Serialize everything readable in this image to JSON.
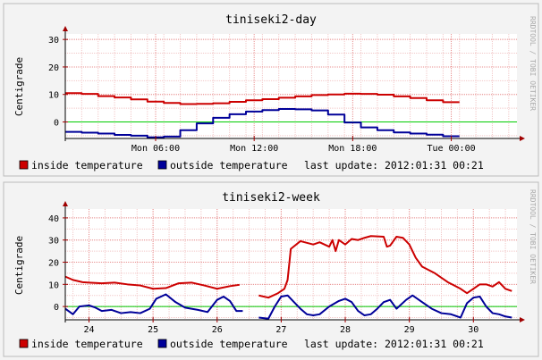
{
  "colors": {
    "inside": "#cc0000",
    "outside": "#000099",
    "zero_line": "#00cc00",
    "major_grid": "#e89090",
    "minor_grid": "#f2c8c8",
    "frame": "#999999"
  },
  "chart_data": [
    {
      "type": "line",
      "title": "tiniseki2-day",
      "ylabel": "Centigrade",
      "ylim": [
        -6,
        32
      ],
      "xlim": [
        0,
        27.5
      ],
      "yticks": [
        0,
        10,
        20,
        30
      ],
      "xticks": [
        {
          "label": "Mon 06:00",
          "value": 5.5
        },
        {
          "label": "Mon 12:00",
          "value": 11.5
        },
        {
          "label": "Mon 18:00",
          "value": 17.5
        },
        {
          "label": "Tue 00:00",
          "value": 23.5
        }
      ],
      "grid": true,
      "legend_placement": "bottom",
      "watermark": "RRDTOOL / TOBI OETIKER",
      "series": [
        {
          "name": "inside temperature",
          "x": [
            0,
            1,
            2,
            3,
            4,
            5,
            6,
            7,
            8,
            9,
            10,
            11,
            12,
            13,
            14,
            15,
            16,
            17,
            18,
            19,
            20,
            21,
            22,
            23
          ],
          "values": [
            10.5,
            10.2,
            9.4,
            8.9,
            8.2,
            7.4,
            6.9,
            6.5,
            6.6,
            6.8,
            7.3,
            7.9,
            8.3,
            8.8,
            9.3,
            9.8,
            10.0,
            10.3,
            10.2,
            9.9,
            9.3,
            8.7,
            7.9,
            7.2
          ]
        },
        {
          "name": "outside temperature",
          "x": [
            0,
            1,
            2,
            3,
            4,
            5,
            6,
            7,
            8,
            9,
            10,
            11,
            12,
            13,
            14,
            15,
            16,
            17,
            18,
            19,
            20,
            21,
            22,
            23
          ],
          "values": [
            -3.6,
            -3.9,
            -4.2,
            -4.7,
            -5.0,
            -5.6,
            -5.3,
            -3.0,
            -0.5,
            1.5,
            2.8,
            3.8,
            4.3,
            4.7,
            4.6,
            4.2,
            2.7,
            -0.2,
            -2.0,
            -3.0,
            -3.8,
            -4.2,
            -4.6,
            -5.2
          ]
        }
      ],
      "legend": {
        "inside_label": "inside temperature",
        "outside_label": "outside temperature",
        "last_update": "last update: 2012:01:31 00:21"
      }
    },
    {
      "type": "line",
      "title": "tiniseki2-week",
      "ylabel": "Centigrade",
      "ylim": [
        -6,
        44
      ],
      "xlim": [
        23.63,
        30.68
      ],
      "yticks": [
        0,
        10,
        20,
        30,
        40
      ],
      "xticks": [
        {
          "label": "24",
          "value": 24
        },
        {
          "label": "25",
          "value": 25
        },
        {
          "label": "26",
          "value": 26
        },
        {
          "label": "27",
          "value": 27
        },
        {
          "label": "28",
          "value": 28
        },
        {
          "label": "29",
          "value": 29
        },
        {
          "label": "30",
          "value": 30
        }
      ],
      "grid": true,
      "legend_placement": "bottom",
      "watermark": "RRDTOOL / TOBI OETIKER",
      "series": [
        {
          "name": "inside temperature",
          "segments": [
            {
              "x": [
                23.63,
                23.75,
                23.9,
                24.0,
                24.2,
                24.4,
                24.6,
                24.8,
                25.0,
                25.2,
                25.4,
                25.6,
                25.8,
                26.0,
                26.2,
                26.35
              ],
              "values": [
                13.5,
                12.0,
                11.0,
                10.8,
                10.5,
                10.8,
                10.0,
                9.5,
                8.0,
                8.3,
                10.5,
                10.8,
                9.5,
                8.0,
                9.2,
                9.8
              ]
            },
            {
              "x": [
                26.65,
                26.8,
                26.95,
                27.05,
                27.1,
                27.15,
                27.3,
                27.5,
                27.6,
                27.75,
                27.8,
                27.85,
                27.9,
                28.0,
                28.1,
                28.2,
                28.3,
                28.4,
                28.6,
                28.65,
                28.7,
                28.8,
                28.9,
                29.0,
                29.1,
                29.2,
                29.4,
                29.6,
                29.8,
                29.9,
                30.0,
                30.1,
                30.2,
                30.3,
                30.4,
                30.5,
                30.6
              ],
              "values": [
                5.0,
                4.0,
                6.0,
                8.0,
                12.0,
                26.0,
                29.5,
                28.0,
                29.0,
                27.0,
                30.0,
                25.0,
                30.0,
                28.0,
                30.5,
                30.0,
                31.0,
                31.8,
                31.5,
                27.0,
                27.5,
                31.5,
                31.0,
                28.0,
                22.0,
                18.0,
                15.0,
                11.0,
                8.0,
                6.0,
                8.0,
                10.0,
                10.0,
                9.0,
                11.0,
                8.0,
                7.0
              ]
            }
          ]
        },
        {
          "name": "outside temperature",
          "segments": [
            {
              "x": [
                23.63,
                23.75,
                23.85,
                24.0,
                24.1,
                24.2,
                24.35,
                24.5,
                24.65,
                24.8,
                24.95,
                25.05,
                25.2,
                25.35,
                25.5,
                25.7,
                25.85,
                26.0,
                26.1,
                26.2,
                26.3,
                26.4
              ],
              "values": [
                -1.0,
                -3.5,
                0.0,
                0.5,
                -0.5,
                -2.0,
                -1.5,
                -3.0,
                -2.5,
                -3.0,
                -1.0,
                3.5,
                5.5,
                2.0,
                -0.5,
                -1.5,
                -2.5,
                3.0,
                4.5,
                2.5,
                -2.0,
                -2.0
              ]
            },
            {
              "x": [
                26.65,
                26.8,
                26.9,
                27.0,
                27.1,
                27.2,
                27.3,
                27.4,
                27.5,
                27.6,
                27.75,
                27.9,
                28.0,
                28.1,
                28.2,
                28.3,
                28.4,
                28.5,
                28.6,
                28.7,
                28.8,
                28.95,
                29.05,
                29.2,
                29.35,
                29.5,
                29.65,
                29.8,
                29.9,
                30.0,
                30.1,
                30.2,
                30.3,
                30.4,
                30.5,
                30.6
              ],
              "values": [
                -5.0,
                -5.5,
                0.0,
                4.5,
                5.0,
                2.0,
                -1.0,
                -3.5,
                -4.0,
                -3.5,
                0.0,
                2.5,
                3.5,
                2.0,
                -2.0,
                -4.0,
                -3.5,
                -1.0,
                2.0,
                3.0,
                -1.0,
                3.0,
                5.0,
                2.0,
                -1.0,
                -3.0,
                -3.5,
                -5.0,
                1.5,
                4.0,
                4.5,
                0.0,
                -3.0,
                -3.5,
                -4.5,
                -5.0
              ]
            }
          ]
        }
      ],
      "legend": {
        "inside_label": "inside temperature",
        "outside_label": "outside temperature",
        "last_update": "last update: 2012:01:31 00:21"
      }
    }
  ]
}
